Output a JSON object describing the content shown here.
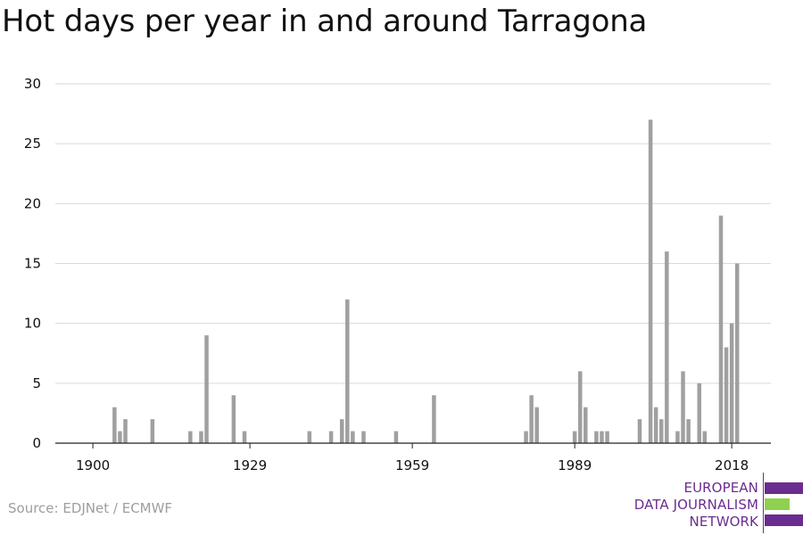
{
  "title": "Hot days per year in and around Tarragona",
  "source": "Source: EDJNet / ECMWF",
  "logo": {
    "lines": [
      "EUROPEAN",
      "DATA JOURNALISM",
      "NETWORK"
    ],
    "colors": {
      "purple": "#6b2c91",
      "green": "#8fd14f"
    }
  },
  "colors": {
    "bar": "#a0a0a0",
    "grid": "#d9d9d9",
    "axis": "#222222",
    "text": "#111111"
  },
  "chart_data": {
    "type": "bar",
    "x": [
      1900,
      1901,
      1902,
      1903,
      1904,
      1905,
      1906,
      1907,
      1908,
      1909,
      1910,
      1911,
      1912,
      1913,
      1914,
      1915,
      1916,
      1917,
      1918,
      1919,
      1920,
      1921,
      1922,
      1923,
      1924,
      1925,
      1926,
      1927,
      1928,
      1929,
      1930,
      1931,
      1932,
      1933,
      1934,
      1935,
      1936,
      1937,
      1938,
      1939,
      1940,
      1941,
      1942,
      1943,
      1944,
      1945,
      1946,
      1947,
      1948,
      1949,
      1950,
      1951,
      1952,
      1953,
      1954,
      1955,
      1956,
      1957,
      1958,
      1959,
      1960,
      1961,
      1962,
      1963,
      1964,
      1965,
      1966,
      1967,
      1968,
      1969,
      1970,
      1971,
      1972,
      1973,
      1974,
      1975,
      1976,
      1977,
      1978,
      1979,
      1980,
      1981,
      1982,
      1983,
      1984,
      1985,
      1986,
      1987,
      1988,
      1989,
      1990,
      1991,
      1992,
      1993,
      1994,
      1995,
      1996,
      1997,
      1998,
      1999,
      2000,
      2001,
      2002,
      2003,
      2004,
      2005,
      2006,
      2007,
      2008,
      2009,
      2010,
      2011,
      2012,
      2013,
      2014,
      2015,
      2016,
      2017,
      2018,
      2019,
      2020
    ],
    "values": [
      0,
      0,
      0,
      0,
      3,
      1,
      2,
      0,
      0,
      0,
      0,
      2,
      0,
      0,
      0,
      0,
      0,
      0,
      1,
      0,
      1,
      9,
      0,
      0,
      0,
      0,
      4,
      0,
      1,
      0,
      0,
      0,
      0,
      0,
      0,
      0,
      0,
      0,
      0,
      0,
      1,
      0,
      0,
      0,
      1,
      0,
      2,
      12,
      1,
      0,
      1,
      0,
      0,
      0,
      0,
      0,
      1,
      0,
      0,
      0,
      0,
      0,
      0,
      4,
      0,
      0,
      0,
      0,
      0,
      0,
      0,
      0,
      0,
      0,
      0,
      0,
      0,
      0,
      0,
      0,
      1,
      4,
      3,
      0,
      0,
      0,
      0,
      0,
      0,
      1,
      6,
      3,
      0,
      1,
      1,
      1,
      0,
      0,
      0,
      0,
      0,
      2,
      0,
      27,
      3,
      2,
      16,
      0,
      1,
      6,
      2,
      0,
      5,
      1,
      0,
      0,
      19,
      8,
      10,
      15,
      0
    ],
    "x_ticks": [
      "1900",
      "1929",
      "1959",
      "1989",
      "2018"
    ],
    "y_ticks": [
      "0",
      "5",
      "10",
      "15",
      "20",
      "25",
      "30"
    ],
    "ylim": [
      0,
      30
    ],
    "xlabel": "",
    "ylabel": "",
    "grid": true
  }
}
